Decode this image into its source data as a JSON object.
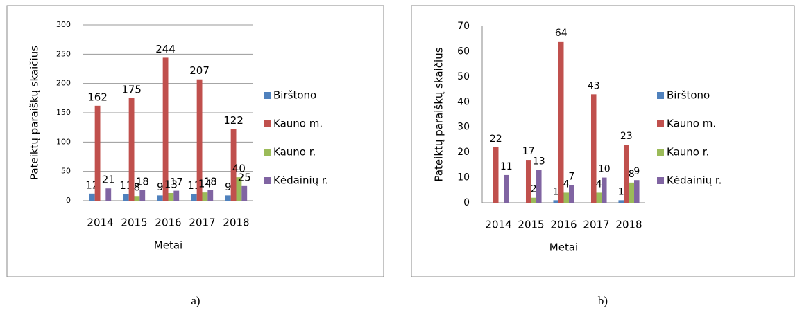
{
  "chart_data": [
    {
      "type": "bar",
      "caption": "a)",
      "ylabel": "Pateiktų paraiškų skaičius",
      "xlabel": "Metai",
      "categories": [
        "2014",
        "2015",
        "2016",
        "2017",
        "2018"
      ],
      "ylim": [
        0,
        300
      ],
      "yticks": [
        0,
        50,
        100,
        150,
        200,
        250,
        300
      ],
      "grid": true,
      "legend": "right",
      "series": [
        {
          "name": "Birštono",
          "color": "#4f81bd",
          "values": [
            12,
            11,
            9,
            11,
            9
          ]
        },
        {
          "name": "Kauno m.",
          "color": "#c0504d",
          "values": [
            162,
            175,
            244,
            207,
            122
          ]
        },
        {
          "name": "Kauno r.",
          "color": "#9bbb59",
          "values": [
            null,
            8,
            13,
            14,
            40
          ]
        },
        {
          "name": "Kėdainių r.",
          "color": "#8064a2",
          "values": [
            21,
            18,
            17,
            18,
            25
          ]
        }
      ]
    },
    {
      "type": "bar",
      "caption": "b)",
      "ylabel": "Pateiktų paraiškų skaičius",
      "xlabel": "Metai",
      "categories": [
        "2014",
        "2015",
        "2016",
        "2017",
        "2018"
      ],
      "ylim": [
        0,
        70
      ],
      "yticks": [
        0,
        10,
        20,
        30,
        40,
        50,
        60,
        70
      ],
      "grid": false,
      "legend": "right",
      "series": [
        {
          "name": "Birštono",
          "color": "#4f81bd",
          "values": [
            null,
            null,
            1,
            null,
            1
          ]
        },
        {
          "name": "Kauno m.",
          "color": "#c0504d",
          "values": [
            22,
            17,
            64,
            43,
            23
          ]
        },
        {
          "name": "Kauno r.",
          "color": "#9bbb59",
          "values": [
            null,
            2,
            4,
            4,
            8
          ]
        },
        {
          "name": "Kėdainių r.",
          "color": "#8064a2",
          "values": [
            11,
            13,
            7,
            10,
            9
          ]
        }
      ]
    }
  ]
}
